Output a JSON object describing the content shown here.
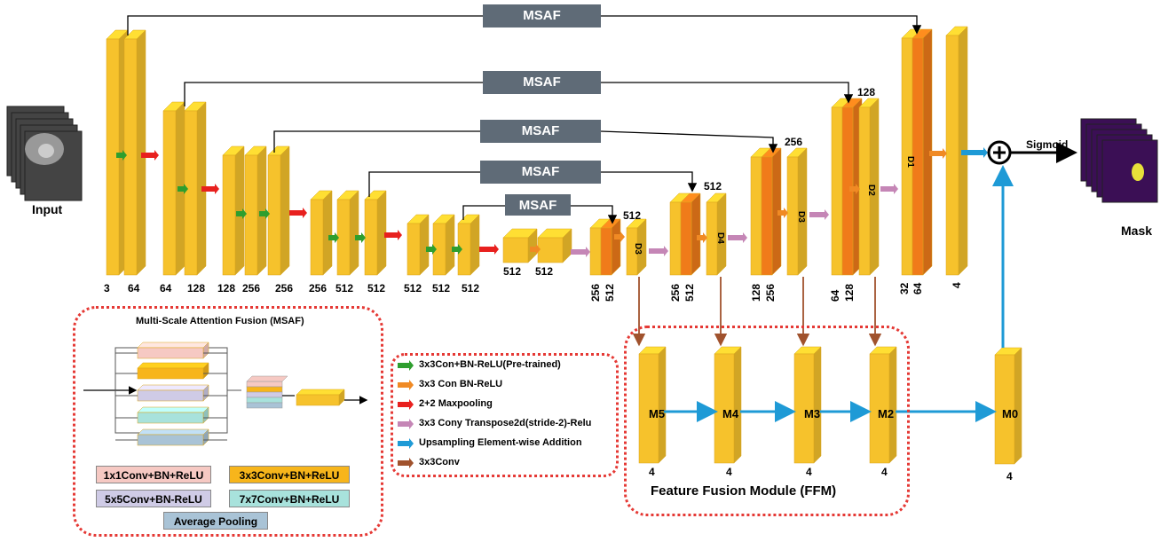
{
  "input_label": "Input",
  "mask_label": "Mask",
  "sigmoid_label": "Sigmoid",
  "msaf_label": "MSAF",
  "msaf_panel_title": "Multi-Scale Attention Fusion (MSAF)",
  "ffm_title": "Feature Fusion Module (FFM)",
  "encoder_channels": [
    "3",
    "64",
    "64",
    "128",
    "128",
    "256",
    "256",
    "256",
    "512",
    "512",
    "512",
    "512",
    "512"
  ],
  "bottleneck_channels": [
    "512",
    "512"
  ],
  "decoder_channels": {
    "d3a": [
      "256",
      "512"
    ],
    "d4": [
      "256",
      "512"
    ],
    "d3b": [
      "128",
      "256"
    ],
    "d2": [
      "64",
      "128"
    ],
    "d1": [
      "32",
      "64"
    ],
    "out": "4"
  },
  "decoder_top_labels": [
    "512",
    "512",
    "256",
    "128"
  ],
  "decoder_block_labels": [
    "D3",
    "D4",
    "D3",
    "D2",
    "D1"
  ],
  "ffm_blocks": [
    "M5",
    "M4",
    "M3",
    "M2",
    "M0"
  ],
  "ffm_channels": [
    "4",
    "4",
    "4",
    "4",
    "4"
  ],
  "legend": [
    {
      "text": "3x3Con+BN-ReLU(Pre-trained)",
      "color": "#2e9e2e"
    },
    {
      "text": "3x3 Con BN-ReLU",
      "color": "#f08a24"
    },
    {
      "text": "2+2 Maxpooling",
      "color": "#e8201e"
    },
    {
      "text": "3x3 Cony Transpose2d(stride-2)-Relu",
      "color": "#c586b6"
    },
    {
      "text": "Upsampling Element-wise Addition",
      "color": "#1e9ad6"
    },
    {
      "text": "3x3Conv",
      "color": "#a0522d"
    }
  ],
  "msaf_keys": [
    {
      "text": "1x1Conv+BN+ReLU",
      "color": "#f6c9c3"
    },
    {
      "text": "3x3Conv+BN+ReLU",
      "color": "#f7b51b"
    },
    {
      "text": "5x5Conv+BN-ReLU",
      "color": "#cfcbe6"
    },
    {
      "text": "7x7Conv+BN+ReLU",
      "color": "#a8e2dc"
    },
    {
      "text": "Average Pooling",
      "color": "#a9c3d6"
    }
  ],
  "colors": {
    "block_yellow": "#f6c22c",
    "block_orange": "#f07b1a",
    "msaf_box": "#5f6b77",
    "dashed_red": "#e53935",
    "up_blue": "#1e9ad6",
    "conv_brown": "#a0522d",
    "pool_red": "#e8201e",
    "transpose_pink": "#c586b6"
  }
}
